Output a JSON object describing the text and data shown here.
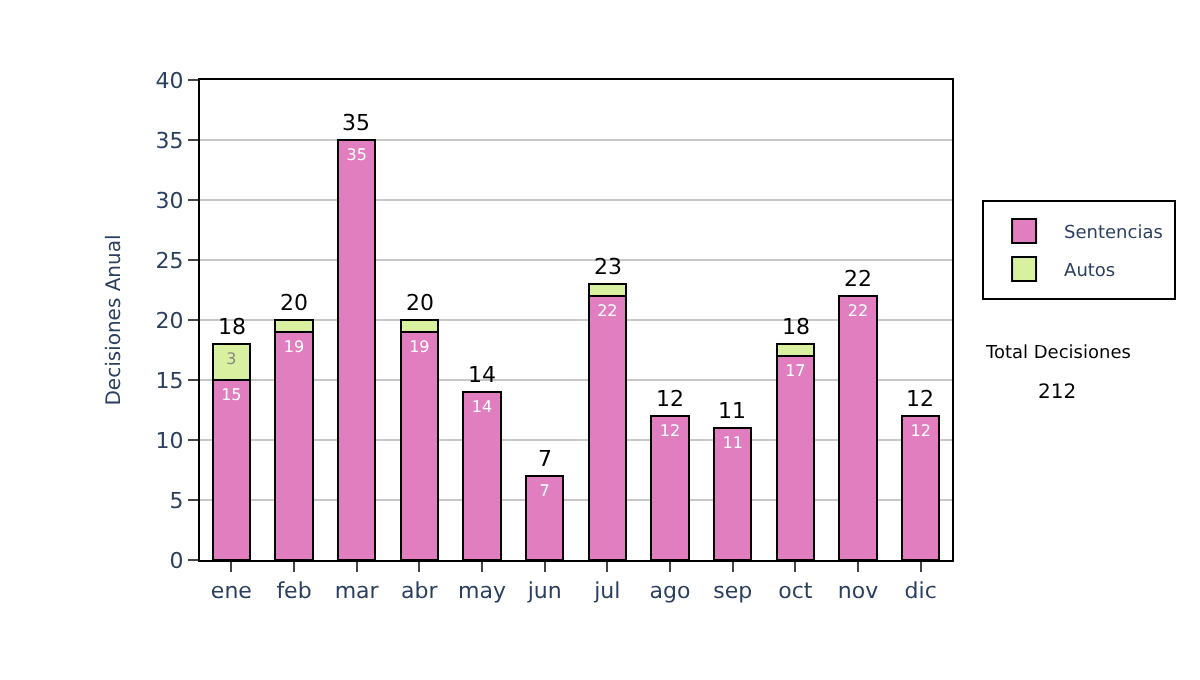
{
  "chart_data": {
    "type": "bar",
    "stacked": true,
    "ylabel": "Decisiones Anual",
    "categories": [
      "ene",
      "feb",
      "mar",
      "abr",
      "may",
      "jun",
      "jul",
      "ago",
      "sep",
      "oct",
      "nov",
      "dic"
    ],
    "series": [
      {
        "name": "Sentencias",
        "color": "#e07ec0",
        "values": [
          15,
          19,
          35,
          19,
          14,
          7,
          22,
          12,
          11,
          17,
          22,
          12
        ],
        "value_labels": [
          "15",
          "19",
          "35",
          "19",
          "14",
          "7",
          "22",
          "12",
          "11",
          "17",
          "22",
          "12"
        ]
      },
      {
        "name": "Autos",
        "color": "#d8f0a0",
        "values": [
          3,
          1,
          0,
          1,
          0,
          0,
          1,
          0,
          0,
          1,
          0,
          0
        ],
        "value_labels": [
          "3",
          null,
          null,
          null,
          null,
          null,
          null,
          null,
          null,
          null,
          null,
          null
        ]
      }
    ],
    "totals": [
      "18",
      "20",
      "35",
      "20",
      "14",
      "7",
      "23",
      "12",
      "11",
      "18",
      "22",
      "12"
    ],
    "ylim": [
      0,
      40
    ],
    "yticks": [
      0,
      5,
      10,
      15,
      20,
      25,
      30,
      35,
      40
    ],
    "grid": "y",
    "legend": "right",
    "annotations": [
      "Total Decisiones",
      "212"
    ]
  }
}
